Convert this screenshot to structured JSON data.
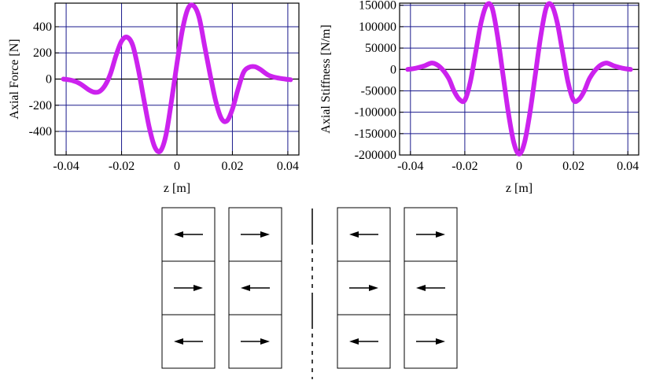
{
  "colors": {
    "curve": "#cc22ee",
    "grid": "#1a1a8c",
    "axis": "#000000",
    "frame": "#000000"
  },
  "chart_data": [
    {
      "type": "line",
      "xlabel": "z [m]",
      "ylabel": "Axial Force [N]",
      "xlim": [
        -0.044,
        0.044
      ],
      "ylim": [
        -580,
        580
      ],
      "xticks": [
        -0.04,
        -0.02,
        0,
        0.02,
        0.04
      ],
      "xtick_labels": [
        "-0.04",
        "-0.02",
        "0",
        "0.02",
        "0.04"
      ],
      "yticks": [
        -400,
        -200,
        0,
        200,
        400
      ],
      "ytick_labels": [
        "-400",
        "-200",
        "0",
        "200",
        "400"
      ],
      "grid": true,
      "series": [
        {
          "x": [
            -0.041,
            -0.038,
            -0.035,
            -0.032,
            -0.03,
            -0.028,
            -0.026,
            -0.024,
            -0.022,
            -0.02,
            -0.018,
            -0.016,
            -0.014,
            -0.012,
            -0.01,
            -0.008,
            -0.006,
            -0.004,
            -0.002,
            0,
            0.002,
            0.004,
            0.006,
            0.008,
            0.01,
            0.012,
            0.014,
            0.016,
            0.018,
            0.02,
            0.022,
            0.024,
            0.026,
            0.028,
            0.03,
            0.033,
            0.036,
            0.039,
            0.041
          ],
          "y": [
            0,
            -10,
            -35,
            -80,
            -100,
            -95,
            -50,
            40,
            180,
            290,
            320,
            260,
            80,
            -150,
            -370,
            -520,
            -550,
            -430,
            -170,
            120,
            380,
            540,
            560,
            470,
            250,
            30,
            -170,
            -300,
            -320,
            -230,
            -80,
            50,
            90,
            95,
            75,
            30,
            10,
            0,
            -5
          ]
        }
      ]
    },
    {
      "type": "line",
      "xlabel": "z [m]",
      "ylabel": "Axial Stiffness [N/m]",
      "xlim": [
        -0.044,
        0.044
      ],
      "ylim": [
        -200000,
        155000
      ],
      "xticks": [
        -0.04,
        -0.02,
        0,
        0.02,
        0.04
      ],
      "xtick_labels": [
        "-0.04",
        "-0.02",
        "0",
        "0.02",
        "0.04"
      ],
      "yticks": [
        -200000,
        -150000,
        -100000,
        -50000,
        0,
        50000,
        100000,
        150000
      ],
      "ytick_labels": [
        "-200000",
        "-150000",
        "-100000",
        "-50000",
        "0",
        "50000",
        "100000",
        "150000"
      ],
      "grid": true,
      "series": [
        {
          "x": [
            -0.041,
            -0.038,
            -0.035,
            -0.032,
            -0.029,
            -0.026,
            -0.024,
            -0.022,
            -0.02,
            -0.018,
            -0.016,
            -0.014,
            -0.012,
            -0.01,
            -0.008,
            -0.006,
            -0.004,
            -0.002,
            0,
            0.002,
            0.004,
            0.006,
            0.008,
            0.01,
            0.012,
            0.014,
            0.016,
            0.018,
            0.02,
            0.022,
            0.024,
            0.026,
            0.029,
            0.032,
            0.035,
            0.038,
            0.041
          ],
          "y": [
            0,
            3000,
            8000,
            15000,
            5000,
            -20000,
            -50000,
            -70000,
            -72000,
            -30000,
            40000,
            110000,
            150000,
            145000,
            80000,
            -10000,
            -100000,
            -170000,
            -198000,
            -170000,
            -100000,
            -10000,
            80000,
            145000,
            150000,
            110000,
            40000,
            -30000,
            -72000,
            -70000,
            -50000,
            -20000,
            5000,
            15000,
            8000,
            3000,
            0
          ]
        }
      ]
    }
  ],
  "magnet_diagram": {
    "left_group": {
      "columns": [
        {
          "arrows": [
            "left",
            "right",
            "left"
          ]
        },
        {
          "arrows": [
            "right",
            "left",
            "right"
          ]
        }
      ]
    },
    "right_group": {
      "columns": [
        {
          "arrows": [
            "left",
            "right",
            "left"
          ]
        },
        {
          "arrows": [
            "right",
            "left",
            "right"
          ]
        }
      ]
    }
  }
}
